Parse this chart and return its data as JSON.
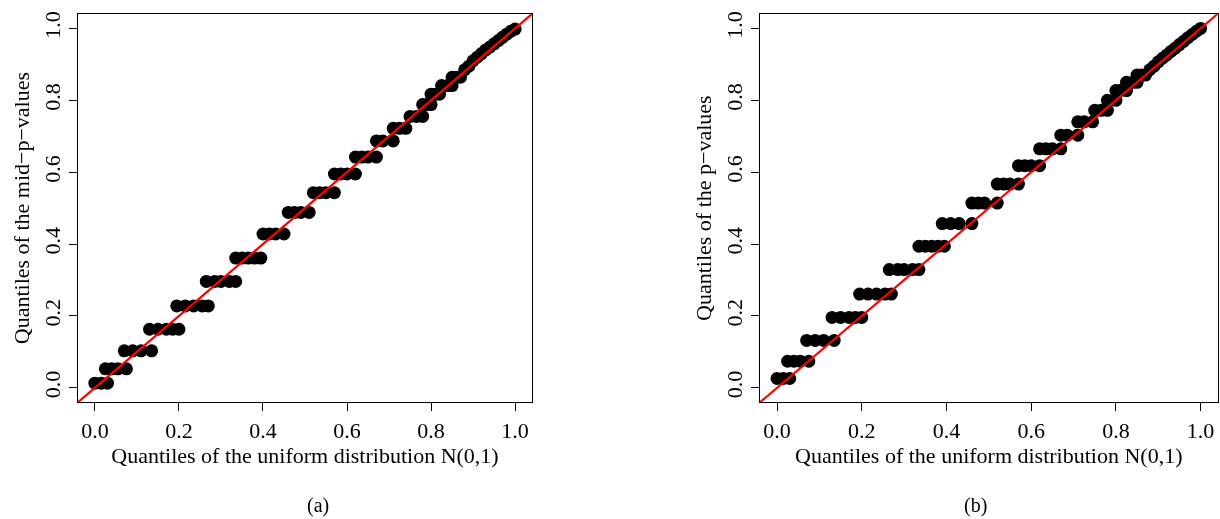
{
  "chart_data": [
    {
      "type": "scatter",
      "xlabel": "Quantiles of the uniform distribution N(0,1)",
      "ylabel": "Quantiles of the mid−p−values",
      "annotations": [
        "(a)"
      ],
      "xlim": [
        -0.04,
        1.04
      ],
      "ylim": [
        -0.04,
        1.04
      ],
      "xticks": [
        "0.0",
        0.2,
        0.4,
        0.6,
        0.8,
        "1.0"
      ],
      "yticks": [
        "0.0",
        0.2,
        0.4,
        0.6,
        0.8,
        "1.0"
      ],
      "grid": false,
      "series": [
        {
          "color": "#000000",
          "marker": "circle",
          "x": [
            0,
            0.015,
            0.03,
            0.025,
            0.04,
            0.055,
            0.075,
            0.07,
            0.09,
            0.11,
            0.135,
            0.13,
            0.15,
            0.17,
            0.185,
            0.2,
            0.195,
            0.215,
            0.235,
            0.255,
            0.27,
            0.265,
            0.285,
            0.3,
            0.32,
            0.335,
            0.335,
            0.35,
            0.365,
            0.38,
            0.395,
            0.4,
            0.415,
            0.43,
            0.45,
            0.46,
            0.475,
            0.49,
            0.51,
            0.52,
            0.535,
            0.55,
            0.57,
            0.57,
            0.585,
            0.6,
            0.62,
            0.62,
            0.635,
            0.65,
            0.67,
            0.67,
            0.685,
            0.71,
            0.71,
            0.725,
            0.74,
            0.75,
            0.765,
            0.78,
            0.78,
            0.79,
            0.8,
            0.8,
            0.81,
            0.82,
            0.825,
            0.84,
            0.85,
            0.85,
            0.86,
            0.87,
            0.88,
            0.89,
            0.9,
            0.91,
            0.92,
            0.93,
            0.94,
            0.95,
            0.96,
            0.97,
            0.98,
            0.99,
            1.0
          ],
          "values": [
            0.013,
            0.013,
            0.013,
            0.053,
            0.053,
            0.053,
            0.053,
            0.103,
            0.103,
            0.103,
            0.103,
            0.163,
            0.163,
            0.163,
            0.163,
            0.163,
            0.228,
            0.228,
            0.228,
            0.228,
            0.228,
            0.296,
            0.296,
            0.296,
            0.296,
            0.296,
            0.361,
            0.361,
            0.361,
            0.361,
            0.361,
            0.428,
            0.428,
            0.428,
            0.428,
            0.488,
            0.488,
            0.488,
            0.488,
            0.543,
            0.543,
            0.543,
            0.543,
            0.595,
            0.595,
            0.595,
            0.595,
            0.642,
            0.642,
            0.642,
            0.642,
            0.687,
            0.687,
            0.687,
            0.722,
            0.722,
            0.722,
            0.755,
            0.755,
            0.755,
            0.788,
            0.788,
            0.788,
            0.817,
            0.817,
            0.817,
            0.841,
            0.841,
            0.841,
            0.864,
            0.864,
            0.864,
            0.885,
            0.895,
            0.91,
            0.92,
            0.93,
            0.94,
            0.948,
            0.957,
            0.966,
            0.975,
            0.984,
            0.992,
            0.998
          ]
        },
        {
          "type": "line",
          "color": "#ff0000",
          "x": [
            -0.04,
            1.04
          ],
          "values": [
            -0.04,
            1.04
          ]
        }
      ]
    },
    {
      "type": "scatter",
      "xlabel": "Quantiles of the uniform distribution N(0,1)",
      "ylabel": "Quantiles of the p−values",
      "annotations": [
        "(b)"
      ],
      "xlim": [
        -0.04,
        1.04
      ],
      "ylim": [
        -0.04,
        1.04
      ],
      "xticks": [
        "0.0",
        0.2,
        0.4,
        0.6,
        0.8,
        "1.0"
      ],
      "yticks": [
        "0.0",
        0.2,
        0.4,
        0.6,
        0.8,
        "1.0"
      ],
      "grid": false,
      "series": [
        {
          "color": "#000000",
          "marker": "circle",
          "x": [
            0,
            0.015,
            0.03,
            0.025,
            0.04,
            0.055,
            0.075,
            0.07,
            0.09,
            0.11,
            0.135,
            0.13,
            0.15,
            0.17,
            0.185,
            0.2,
            0.195,
            0.215,
            0.235,
            0.255,
            0.27,
            0.265,
            0.285,
            0.3,
            0.32,
            0.335,
            0.335,
            0.35,
            0.365,
            0.38,
            0.395,
            0.39,
            0.41,
            0.43,
            0.46,
            0.46,
            0.475,
            0.49,
            0.52,
            0.52,
            0.535,
            0.55,
            0.57,
            0.57,
            0.585,
            0.6,
            0.62,
            0.62,
            0.635,
            0.65,
            0.67,
            0.67,
            0.685,
            0.71,
            0.71,
            0.725,
            0.745,
            0.75,
            0.765,
            0.78,
            0.78,
            0.8,
            0.8,
            0.81,
            0.825,
            0.825,
            0.84,
            0.85,
            0.85,
            0.86,
            0.87,
            0.88,
            0.89,
            0.9,
            0.91,
            0.92,
            0.93,
            0.94,
            0.95,
            0.96,
            0.97,
            0.98,
            0.99,
            1.0
          ],
          "values": [
            0.026,
            0.026,
            0.026,
            0.074,
            0.074,
            0.074,
            0.074,
            0.132,
            0.132,
            0.132,
            0.132,
            0.196,
            0.196,
            0.196,
            0.196,
            0.196,
            0.261,
            0.261,
            0.261,
            0.261,
            0.261,
            0.329,
            0.329,
            0.329,
            0.329,
            0.329,
            0.394,
            0.394,
            0.394,
            0.394,
            0.394,
            0.457,
            0.457,
            0.457,
            0.457,
            0.514,
            0.514,
            0.514,
            0.514,
            0.567,
            0.567,
            0.567,
            0.567,
            0.618,
            0.618,
            0.618,
            0.618,
            0.665,
            0.665,
            0.665,
            0.665,
            0.703,
            0.703,
            0.703,
            0.74,
            0.74,
            0.74,
            0.772,
            0.772,
            0.772,
            0.8,
            0.8,
            0.827,
            0.827,
            0.827,
            0.85,
            0.85,
            0.85,
            0.87,
            0.87,
            0.87,
            0.885,
            0.895,
            0.907,
            0.917,
            0.926,
            0.936,
            0.945,
            0.955,
            0.964,
            0.974,
            0.983,
            0.992,
            1.0
          ]
        },
        {
          "type": "line",
          "color": "#ff0000",
          "x": [
            -0.04,
            1.04
          ],
          "values": [
            -0.04,
            1.04
          ]
        }
      ]
    }
  ]
}
